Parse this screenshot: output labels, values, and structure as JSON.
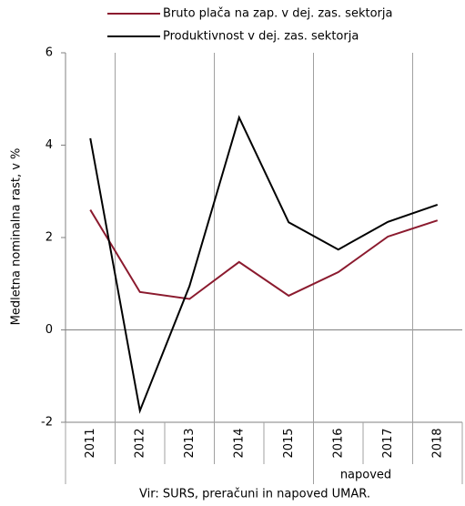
{
  "chart_data": {
    "type": "line",
    "y_axis_label": "Medletna nominalna rast, v %",
    "categories": [
      "2011",
      "2012",
      "2013",
      "2014",
      "2015",
      "2016",
      "2017",
      "2018"
    ],
    "series": [
      {
        "name": "Bruto plača na zap. v dej. zas. sektorja",
        "color": "#8b1a2e",
        "values": [
          2.6,
          0.82,
          0.67,
          1.47,
          0.74,
          1.25,
          2.02,
          2.37
        ]
      },
      {
        "name": "Produktivnost v dej. zas. sektorja",
        "color": "#000000",
        "values": [
          4.15,
          -1.75,
          0.95,
          4.6,
          2.33,
          1.74,
          2.34,
          2.71
        ]
      }
    ],
    "ylim": [
      -2,
      6
    ],
    "yticks": [
      -2,
      0,
      2,
      4,
      6
    ],
    "annotation": "napoved",
    "source": "Vir: SURS, preračuni in napoved UMAR."
  }
}
